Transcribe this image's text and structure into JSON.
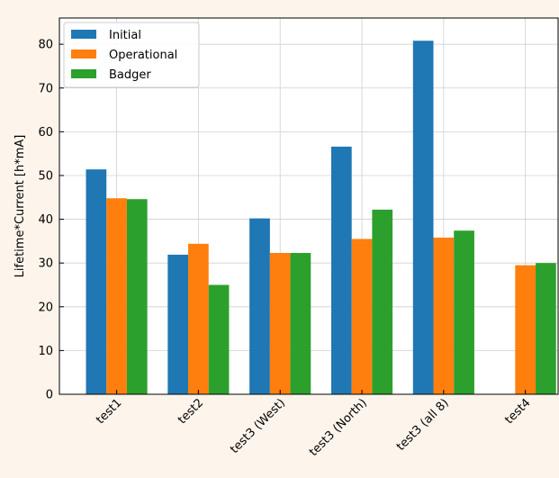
{
  "chart_data": {
    "type": "bar",
    "title": "",
    "xlabel": "",
    "ylabel": "Lifetime*Current [h*mA]",
    "categories": [
      "test1",
      "test2",
      "test3 (West)",
      "test3 (North)",
      "test3 (all 8)",
      "test4"
    ],
    "series": [
      {
        "name": "Initial",
        "color": "#1f77b4",
        "values": [
          51.4,
          31.9,
          40.2,
          56.6,
          80.8,
          null
        ]
      },
      {
        "name": "Operational",
        "color": "#ff7f0e",
        "values": [
          44.8,
          34.4,
          32.3,
          35.5,
          35.8,
          29.5
        ]
      },
      {
        "name": "Badger",
        "color": "#2ca02c",
        "values": [
          44.6,
          25.0,
          32.3,
          42.2,
          37.4,
          30.0
        ]
      }
    ],
    "ylim": [
      0,
      86
    ],
    "yticks": [
      0,
      10,
      20,
      30,
      40,
      50,
      60,
      70,
      80
    ],
    "grid": true,
    "legend_position": "top-left"
  }
}
